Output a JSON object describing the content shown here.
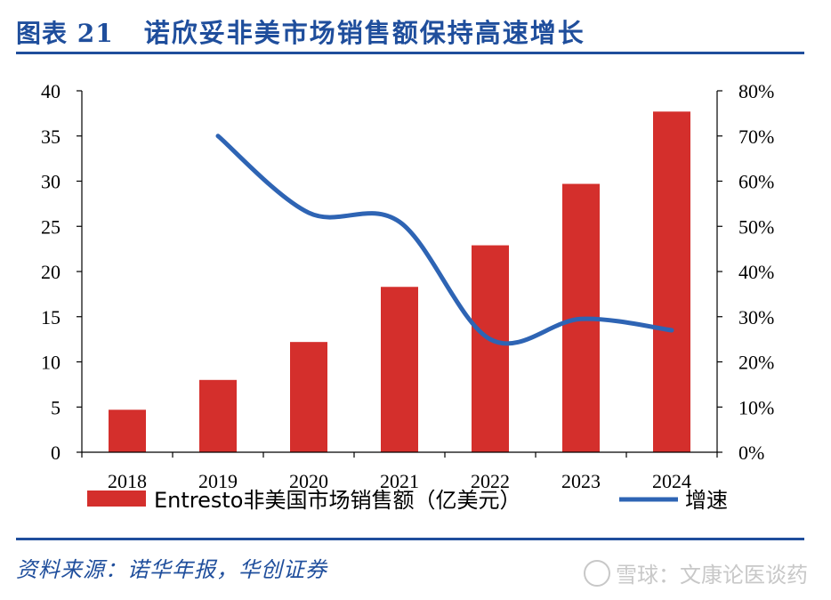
{
  "header": {
    "figure_no": "图表 21",
    "title": "诺欣妥非美市场销售额保持高速增长"
  },
  "source": "资料来源：诺华年报，华创证券",
  "watermark": {
    "text": "雪球：文康论医谈药",
    "icon": "snowball-logo-icon"
  },
  "colors": {
    "bar": "#d42f2c",
    "line": "#2e64b4",
    "accent": "#1f4e9c"
  },
  "chart_data": {
    "type": "bar",
    "categories": [
      "2018",
      "2019",
      "2020",
      "2021",
      "2022",
      "2023",
      "2024"
    ],
    "y_left": {
      "ticks": [
        "0",
        "5",
        "10",
        "15",
        "20",
        "25",
        "30",
        "35",
        "40"
      ],
      "lim": [
        0,
        40
      ]
    },
    "y_right": {
      "ticks": [
        "0%",
        "10%",
        "20%",
        "30%",
        "40%",
        "50%",
        "60%",
        "70%",
        "80%"
      ],
      "lim": [
        0,
        80
      ]
    },
    "series": [
      {
        "name": "Entresto非美国市场销售额（亿美元）",
        "type": "bar",
        "axis": "left",
        "values": [
          4.7,
          8.0,
          12.2,
          18.3,
          22.9,
          29.7,
          37.7
        ]
      },
      {
        "name": "增速",
        "type": "line",
        "axis": "right",
        "smooth": true,
        "values": [
          null,
          70,
          53,
          51,
          25,
          29.5,
          27
        ]
      }
    ],
    "legend_position": "bottom"
  }
}
